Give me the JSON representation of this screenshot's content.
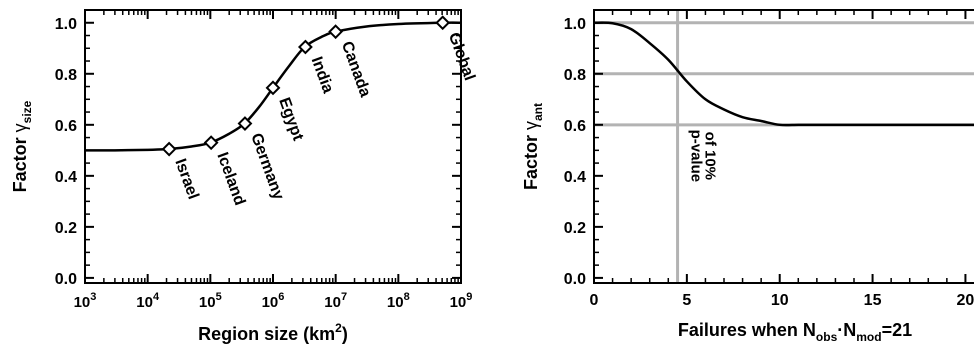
{
  "chart_data": [
    {
      "type": "line",
      "x_scale": "log",
      "xlim": [
        1000,
        1000000000
      ],
      "ylim": [
        -0.02,
        1.05
      ],
      "x_ticks": [
        1000,
        10000,
        100000,
        1000000,
        10000000,
        100000000,
        1000000000
      ],
      "x_tick_labels": [
        {
          "base": "10",
          "exp": "3"
        },
        {
          "base": "10",
          "exp": "4"
        },
        {
          "base": "10",
          "exp": "5"
        },
        {
          "base": "10",
          "exp": "6"
        },
        {
          "base": "10",
          "exp": "7"
        },
        {
          "base": "10",
          "exp": "8"
        },
        {
          "base": "10",
          "exp": "9"
        }
      ],
      "y_ticks": [
        0.0,
        0.2,
        0.4,
        0.6,
        0.8,
        1.0
      ],
      "y_tick_labels": [
        "0.0",
        "0.2",
        "0.4",
        "0.6",
        "0.8",
        "1.0"
      ],
      "xlabel": {
        "main": "Region size (km",
        "sup": "2",
        "tail": ")"
      },
      "ylabel": {
        "main": "Factor ",
        "greek": "γ",
        "sub": "size"
      },
      "grid": false,
      "curve": {
        "x": [
          1000,
          3000,
          10000,
          22000,
          50000,
          100000,
          200000,
          350000,
          600000,
          1000000,
          1800000,
          3200000,
          6000000,
          10000000,
          30000000,
          100000000,
          550000000,
          1000000000
        ],
        "y": [
          0.5,
          0.5,
          0.502,
          0.505,
          0.515,
          0.53,
          0.565,
          0.605,
          0.67,
          0.745,
          0.83,
          0.905,
          0.945,
          0.965,
          0.985,
          0.995,
          1.0,
          1.0
        ]
      },
      "markers": [
        {
          "label": "Israel",
          "x": 22000,
          "y": 0.505
        },
        {
          "label": "Iceland",
          "x": 103000,
          "y": 0.53
        },
        {
          "label": "Germany",
          "x": 357000,
          "y": 0.605
        },
        {
          "label": "Egypt",
          "x": 1000000,
          "y": 0.745
        },
        {
          "label": "India",
          "x": 3290000,
          "y": 0.905
        },
        {
          "label": "Canada",
          "x": 9980000,
          "y": 0.965
        },
        {
          "label": "Global",
          "x": 510000000,
          "y": 1.0
        }
      ]
    },
    {
      "type": "line",
      "xlim": [
        0,
        21
      ],
      "ylim": [
        -0.02,
        1.05
      ],
      "x_ticks": [
        0,
        5,
        10,
        15,
        20
      ],
      "x_tick_labels": [
        "0",
        "5",
        "10",
        "15",
        "20"
      ],
      "y_ticks": [
        0.0,
        0.2,
        0.4,
        0.6,
        0.8,
        1.0
      ],
      "y_tick_labels": [
        "0.0",
        "0.2",
        "0.4",
        "0.6",
        "0.8",
        "1.0"
      ],
      "xlabel": {
        "main": "Failures when N",
        "sub1": "obs",
        "mid": "·N",
        "sub2": "mod",
        "tail": "=21"
      },
      "ylabel": {
        "main": "Factor ",
        "greek": "γ",
        "sub": "ant"
      },
      "grid": false,
      "reference_lines": {
        "horizontal": [
          1.0,
          0.8,
          0.6
        ],
        "vertical": [
          4.5
        ],
        "color": "#b3b3b3"
      },
      "annotation": {
        "line1": "p-value",
        "line2": "of 10%",
        "x": 4.5
      },
      "curve": {
        "x": [
          0,
          1,
          2,
          3,
          4,
          5,
          6,
          7,
          8,
          9,
          10,
          11,
          12,
          15,
          18,
          21
        ],
        "y": [
          1.0,
          0.998,
          0.975,
          0.92,
          0.855,
          0.77,
          0.7,
          0.66,
          0.63,
          0.615,
          0.6,
          0.6,
          0.6,
          0.6,
          0.6,
          0.6
        ]
      }
    }
  ]
}
